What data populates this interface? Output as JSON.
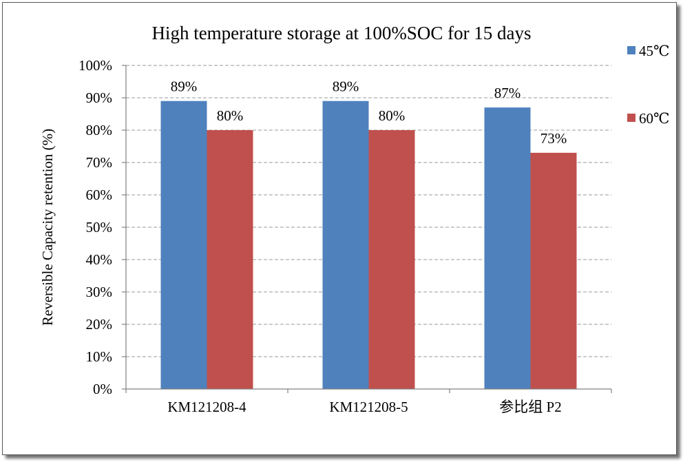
{
  "chart_data": {
    "type": "bar",
    "title": "High temperature storage at 100%SOC for 15 days",
    "xlabel": "",
    "ylabel": "Reversible Capacity retention  (%)",
    "categories": [
      "KM121208-4",
      "KM121208-5",
      "参比组  P2"
    ],
    "series": [
      {
        "name": "45℃",
        "values": [
          89,
          89,
          87
        ],
        "labels": [
          "89%",
          "89%",
          "87%"
        ],
        "color": "#4f81bd"
      },
      {
        "name": "60℃",
        "values": [
          80,
          80,
          73
        ],
        "labels": [
          "80%",
          "80%",
          "73%"
        ],
        "color": "#c0504d"
      }
    ],
    "ylim": [
      0,
      100
    ],
    "yticks": [
      0,
      10,
      20,
      30,
      40,
      50,
      60,
      70,
      80,
      90,
      100
    ],
    "ytick_labels": [
      "0%",
      "10%",
      "20%",
      "30%",
      "40%",
      "50%",
      "60%",
      "70%",
      "80%",
      "90%",
      "100%"
    ],
    "grid": true,
    "grid_style": "dashed",
    "legend": "right"
  }
}
